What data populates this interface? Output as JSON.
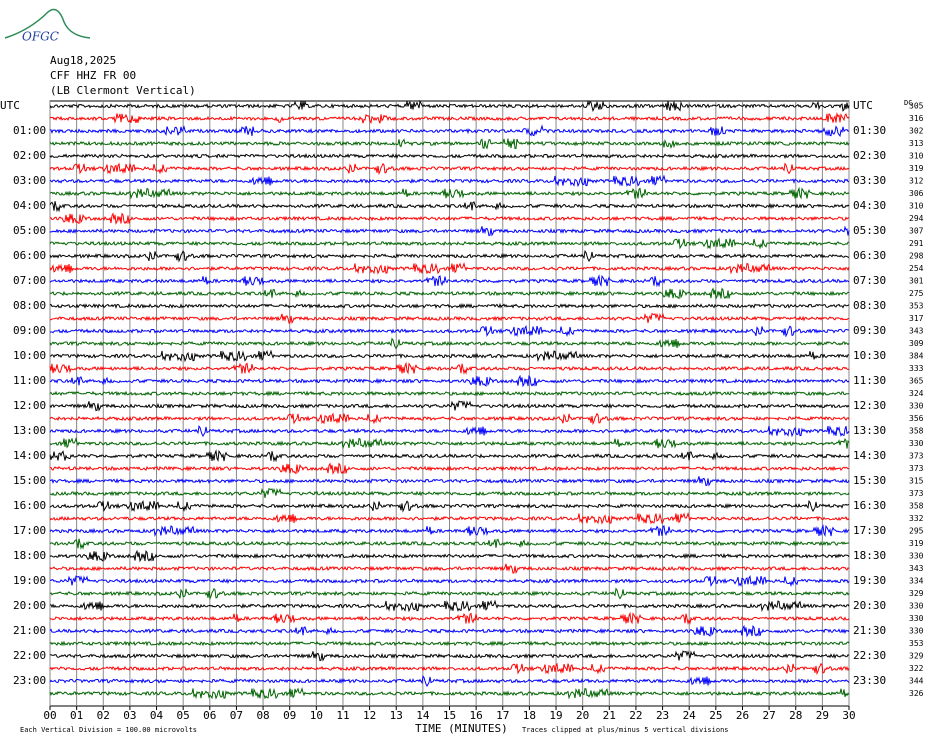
{
  "logo": "OFGC",
  "header": {
    "date": "Aug18,2025",
    "station": "CFF HHZ FR 00",
    "location": "(LB Clermont Vertical)"
  },
  "chart_data": {
    "type": "helicorder",
    "colors": [
      "#000000",
      "#ff0000",
      "#0000ff",
      "#006400"
    ],
    "left_labels": [
      "UTC",
      "01:00",
      "02:00",
      "03:00",
      "04:00",
      "05:00",
      "06:00",
      "07:00",
      "08:00",
      "09:00",
      "10:00",
      "11:00",
      "12:00",
      "13:00",
      "14:00",
      "15:00",
      "16:00",
      "17:00",
      "18:00",
      "19:00",
      "20:00",
      "21:00",
      "22:00",
      "23:00"
    ],
    "right_labels": [
      "UTC",
      "01:30",
      "02:30",
      "03:30",
      "04:30",
      "05:30",
      "06:30",
      "07:30",
      "08:30",
      "09:30",
      "10:30",
      "11:30",
      "12:30",
      "13:30",
      "14:30",
      "15:30",
      "16:30",
      "17:30",
      "18:30",
      "19:30",
      "20:30",
      "21:30",
      "22:30",
      "23:30"
    ],
    "dc_label": "DC",
    "dc_values": [
      305,
      316,
      302,
      313,
      310,
      319,
      312,
      306,
      310,
      294,
      307,
      291,
      298,
      254,
      301,
      275,
      353,
      317,
      343,
      309,
      384,
      333,
      365,
      324,
      330,
      356,
      358,
      330,
      373,
      373,
      315,
      373,
      358,
      332,
      295,
      319,
      330,
      343,
      334,
      329,
      330,
      330,
      330,
      353,
      329,
      322,
      344,
      326
    ],
    "xlim": [
      0,
      30
    ],
    "xticks": [
      {
        "value": 0,
        "label": "00"
      },
      {
        "value": 1,
        "label": "01"
      },
      {
        "value": 2,
        "label": "02"
      },
      {
        "value": 3,
        "label": "03"
      },
      {
        "value": 4,
        "label": "04"
      },
      {
        "value": 5,
        "label": "05"
      },
      {
        "value": 6,
        "label": "06"
      },
      {
        "value": 7,
        "label": "07"
      },
      {
        "value": 8,
        "label": "08"
      },
      {
        "value": 9,
        "label": "09"
      },
      10,
      11,
      12,
      13,
      14,
      15,
      16,
      17,
      18,
      19,
      20,
      21,
      22,
      23,
      24,
      25,
      26,
      27,
      28,
      29,
      30
    ],
    "xlabel": "TIME (MINUTES)",
    "scale_note": "Each Vertical Division =  100.00 microvolts",
    "clip_note": "Traces clipped at plus/minus 5 vertical divisions"
  }
}
